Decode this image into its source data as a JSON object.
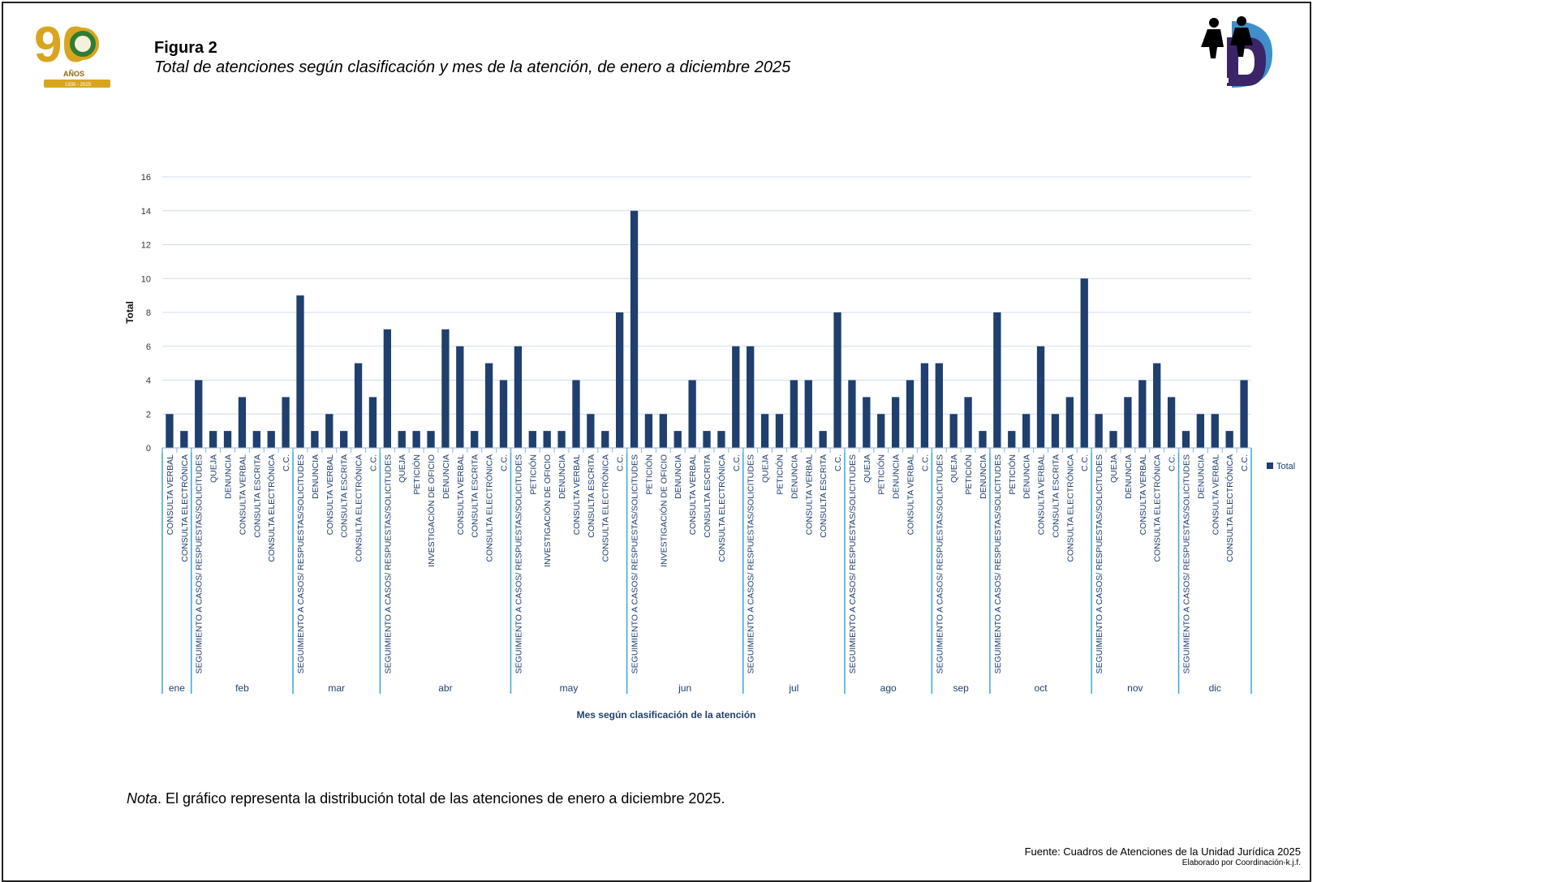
{
  "header": {
    "figure_label": "Figura 2",
    "figure_title": "Total de atenciones según clasificación y mes de la atención, de enero a diciembre 2025",
    "left_logo_text": {
      "number": "90",
      "word": "AÑOS",
      "years": "1935 - 2025"
    }
  },
  "footer": {
    "nota_label": "Nota",
    "nota_text": ". El gráfico representa la distribución total de  las atenciones de enero a diciembre 2025.",
    "fuente": "Fuente: Cuadros de Atenciones de la Unidad Jurídica 2025",
    "elaborado": "Elaborado por Coordinación-k.j.f."
  },
  "colors": {
    "bar": "#1F3F6E",
    "grid": "#D0DCEA",
    "month_line": "#39A6D9",
    "axis_text": "#1F3F6E"
  },
  "chart_data": {
    "type": "bar",
    "title": "Total de atenciones según clasificación y mes de la atención, de enero a diciembre 2025",
    "ylabel": "Total",
    "xlabel": "Mes según clasificación de la atención",
    "ylim": [
      0,
      16
    ],
    "yticks": [
      0,
      2,
      4,
      6,
      8,
      10,
      12,
      14,
      16
    ],
    "legend": "Total",
    "groups": [
      {
        "month": "ene",
        "categories": [
          "CONSULTA VERBAL",
          "CONSULTA ELECTRÓNICA"
        ],
        "values": [
          2,
          1
        ]
      },
      {
        "month": "feb",
        "categories": [
          "SEGUIMIENTO A CASOS/ RESPUESTAS/SOLICITUDES",
          "QUEJA",
          "DENUNCIA",
          "CONSULTA VERBAL",
          "CONSULTA ESCRITA",
          "CONSULTA ELECTRÓNICA",
          "C.C."
        ],
        "values": [
          4,
          1,
          1,
          3,
          1,
          1,
          3
        ]
      },
      {
        "month": "mar",
        "categories": [
          "SEGUIMIENTO A CASOS/ RESPUESTAS/SOLICITUDES",
          "DENUNCIA",
          "CONSULTA VERBAL",
          "CONSULTA ESCRITA",
          "CONSULTA ELECTRÓNICA",
          "C.C."
        ],
        "values": [
          9,
          1,
          2,
          1,
          5,
          3
        ]
      },
      {
        "month": "abr",
        "categories": [
          "SEGUIMIENTO A CASOS/ RESPUESTAS/SOLICITUDES",
          "QUEJA",
          "PETICIÓN",
          "INVESTIGACIÓN DE OFICIO",
          "DENUNCIA",
          "CONSULTA VERBAL",
          "CONSULTA ESCRITA",
          "CONSULTA ELECTRÓNICA",
          "C.C."
        ],
        "values": [
          7,
          1,
          1,
          1,
          7,
          6,
          1,
          5,
          4
        ]
      },
      {
        "month": "may",
        "categories": [
          "SEGUIMIENTO A CASOS/ RESPUESTAS/SOLICITUDES",
          "PETICIÓN",
          "INVESTIGACIÓN DE OFICIO",
          "DENUNCIA",
          "CONSULTA VERBAL",
          "CONSULTA ESCRITA",
          "CONSULTA ELECTRÓNICA",
          "C.C."
        ],
        "values": [
          6,
          1,
          1,
          1,
          4,
          2,
          1,
          8
        ]
      },
      {
        "month": "jun",
        "categories": [
          "SEGUIMIENTO A CASOS/ RESPUESTAS/SOLICITUDES",
          "PETICIÓN",
          "INVESTIGACIÓN DE OFICIO",
          "DENUNCIA",
          "CONSULTA VERBAL",
          "CONSULTA ESCRITA",
          "CONSULTA ELECTRÓNICA",
          "C.C."
        ],
        "values": [
          14,
          2,
          2,
          1,
          4,
          1,
          1,
          6
        ]
      },
      {
        "month": "jul",
        "categories": [
          "SEGUIMIENTO A CASOS/ RESPUESTAS/SOLICITUDES",
          "QUEJA",
          "PETICIÓN",
          "DENUNCIA",
          "CONSULTA VERBAL",
          "CONSULTA ESCRITA",
          "C.C."
        ],
        "values": [
          6,
          2,
          2,
          4,
          4,
          1,
          8
        ]
      },
      {
        "month": "ago",
        "categories": [
          "SEGUIMIENTO A CASOS/ RESPUESTAS/SOLICITUDES",
          "QUEJA",
          "PETICIÓN",
          "DENUNCIA",
          "CONSULTA VERBAL",
          "C.C."
        ],
        "values": [
          4,
          3,
          2,
          3,
          4,
          5
        ]
      },
      {
        "month": "sep",
        "categories": [
          "SEGUIMIENTO A CASOS/ RESPUESTAS/SOLICITUDES",
          "QUEJA",
          "PETICIÓN",
          "DENUNCIA"
        ],
        "values": [
          5,
          2,
          3,
          1
        ]
      },
      {
        "month": "oct",
        "categories": [
          "SEGUIMIENTO A CASOS/ RESPUESTAS/SOLICITUDES",
          "PETICIÓN",
          "DENUNCIA",
          "CONSULTA VERBAL",
          "CONSULTA ESCRITA",
          "CONSULTA ELECTRÓNICA",
          "C.C."
        ],
        "values": [
          8,
          1,
          2,
          6,
          2,
          3,
          10
        ]
      },
      {
        "month": "nov",
        "categories": [
          "SEGUIMIENTO A CASOS/ RESPUESTAS/SOLICITUDES",
          "QUEJA",
          "DENUNCIA",
          "CONSULTA VERBAL",
          "CONSULTA ELECTRÓNICA",
          "C.C."
        ],
        "values": [
          2,
          1,
          3,
          4,
          5,
          3
        ]
      },
      {
        "month": "dic",
        "categories": [
          "SEGUIMIENTO A CASOS/ RESPUESTAS/SOLICITUDES",
          "DENUNCIA",
          "CONSULTA VERBAL",
          "CONSULTA ELECTRÓNICA",
          "C.C."
        ],
        "values": [
          1,
          2,
          2,
          1,
          4
        ]
      }
    ]
  }
}
